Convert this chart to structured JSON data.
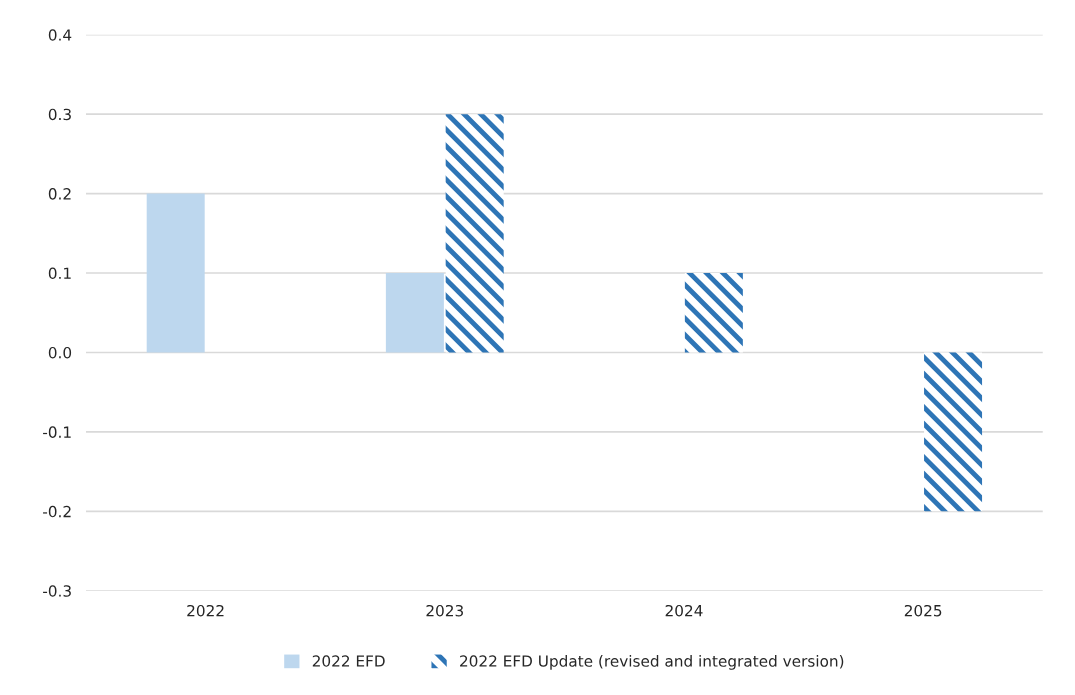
{
  "chart_data": {
    "type": "bar",
    "categories": [
      "2022",
      "2023",
      "2024",
      "2025"
    ],
    "series": [
      {
        "name": "2022 EFD",
        "color": "#bdd7ee",
        "values": [
          0.2,
          0.1,
          null,
          null
        ]
      },
      {
        "name": "2022 EFD Update (revised and integrated version)",
        "color": "#2e75b6",
        "values": [
          null,
          0.3,
          0.1,
          -0.2
        ]
      }
    ],
    "ylim": [
      -0.3,
      0.4
    ],
    "yticks": [
      {
        "value": -0.3,
        "label": "-0.3"
      },
      {
        "value": -0.2,
        "label": "-0.2"
      },
      {
        "value": -0.1,
        "label": "-0.1"
      },
      {
        "value": 0.0,
        "label": "0.0"
      },
      {
        "value": 0.1,
        "label": "0.1"
      },
      {
        "value": 0.2,
        "label": "0.2"
      },
      {
        "value": 0.3,
        "label": "0.3"
      },
      {
        "value": 0.4,
        "label": "0.4"
      }
    ],
    "grid": "y",
    "legend": "bottom"
  }
}
